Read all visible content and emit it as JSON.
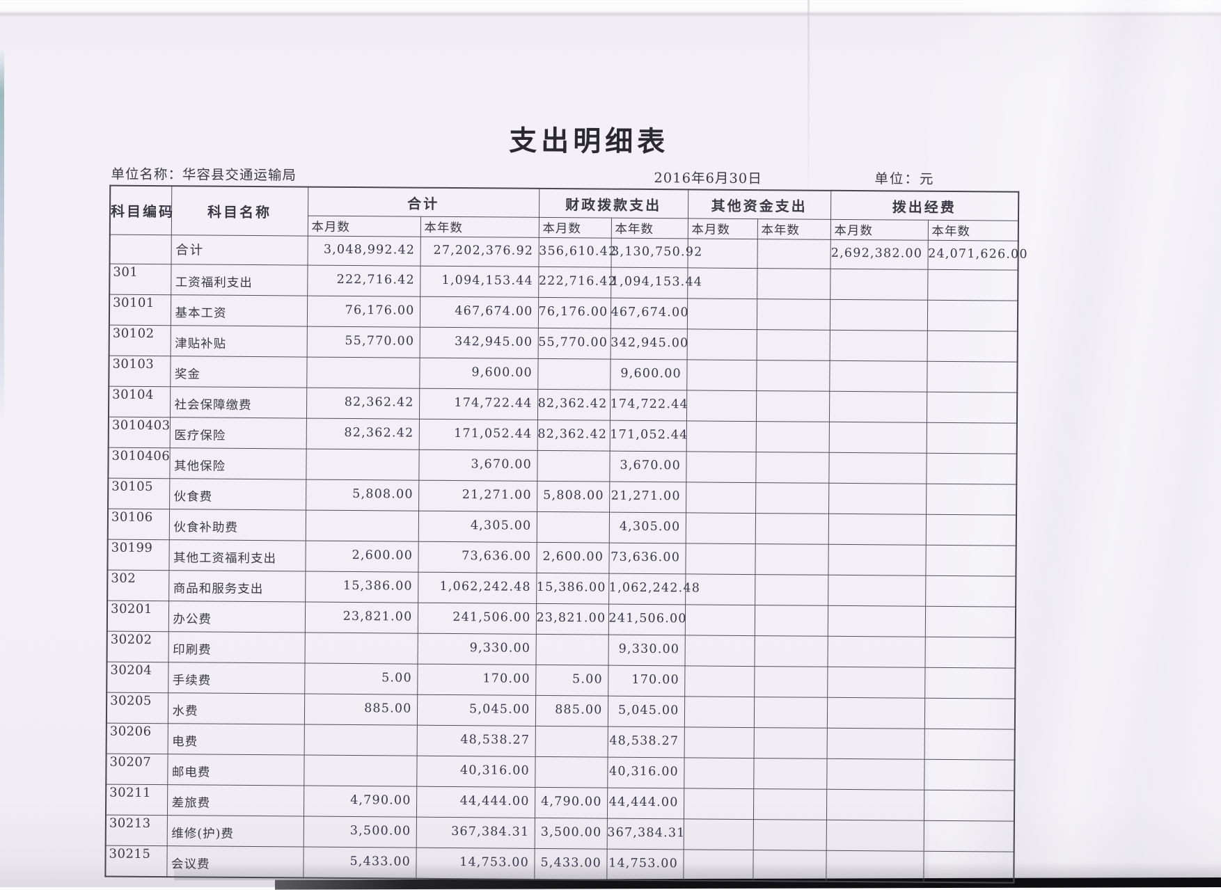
{
  "doc": {
    "title": "支出明细表",
    "unit_line": "单位名称：华容县交通运输局",
    "date": "2016年6月30日",
    "currency_line": "单位：元"
  },
  "table": {
    "corner_headers": [
      "科目编码",
      "科目名称"
    ],
    "groups": [
      "合计",
      "财政拨款支出",
      "其他资金支出",
      "拨出经费"
    ],
    "sub_headers": [
      "本月数",
      "本年数",
      "本月数",
      "本年数",
      "本月数",
      "本年数",
      "本月数",
      "本年数"
    ],
    "rows": [
      {
        "code": "",
        "name": "合计",
        "values": [
          "3,048,992.42",
          "27,202,376.92",
          "356,610.42",
          "3,130,750.92",
          "",
          "",
          "2,692,382.00",
          "24,071,626.00"
        ]
      },
      {
        "code": "301",
        "name": "工资福利支出",
        "values": [
          "222,716.42",
          "1,094,153.44",
          "222,716.42",
          "1,094,153.44",
          "",
          "",
          "",
          ""
        ]
      },
      {
        "code": "30101",
        "name": "基本工资",
        "values": [
          "76,176.00",
          "467,674.00",
          "76,176.00",
          "467,674.00",
          "",
          "",
          "",
          ""
        ]
      },
      {
        "code": "30102",
        "name": "津贴补贴",
        "values": [
          "55,770.00",
          "342,945.00",
          "55,770.00",
          "342,945.00",
          "",
          "",
          "",
          ""
        ]
      },
      {
        "code": "30103",
        "name": "奖金",
        "values": [
          "",
          "9,600.00",
          "",
          "9,600.00",
          "",
          "",
          "",
          ""
        ]
      },
      {
        "code": "30104",
        "name": "社会保障缴费",
        "values": [
          "82,362.42",
          "174,722.44",
          "82,362.42",
          "174,722.44",
          "",
          "",
          "",
          ""
        ]
      },
      {
        "code": "3010403",
        "name": "医疗保险",
        "values": [
          "82,362.42",
          "171,052.44",
          "82,362.42",
          "171,052.44",
          "",
          "",
          "",
          ""
        ]
      },
      {
        "code": "3010406",
        "name": "其他保险",
        "values": [
          "",
          "3,670.00",
          "",
          "3,670.00",
          "",
          "",
          "",
          ""
        ]
      },
      {
        "code": "30105",
        "name": "伙食费",
        "values": [
          "5,808.00",
          "21,271.00",
          "5,808.00",
          "21,271.00",
          "",
          "",
          "",
          ""
        ]
      },
      {
        "code": "30106",
        "name": "伙食补助费",
        "values": [
          "",
          "4,305.00",
          "",
          "4,305.00",
          "",
          "",
          "",
          ""
        ]
      },
      {
        "code": "30199",
        "name": "其他工资福利支出",
        "values": [
          "2,600.00",
          "73,636.00",
          "2,600.00",
          "73,636.00",
          "",
          "",
          "",
          ""
        ]
      },
      {
        "code": "302",
        "name": "商品和服务支出",
        "values": [
          "15,386.00",
          "1,062,242.48",
          "15,386.00",
          "1,062,242.48",
          "",
          "",
          "",
          ""
        ]
      },
      {
        "code": "30201",
        "name": "办公费",
        "values": [
          "23,821.00",
          "241,506.00",
          "23,821.00",
          "241,506.00",
          "",
          "",
          "",
          ""
        ]
      },
      {
        "code": "30202",
        "name": "印刷费",
        "values": [
          "",
          "9,330.00",
          "",
          "9,330.00",
          "",
          "",
          "",
          ""
        ]
      },
      {
        "code": "30204",
        "name": "手续费",
        "values": [
          "5.00",
          "170.00",
          "5.00",
          "170.00",
          "",
          "",
          "",
          ""
        ]
      },
      {
        "code": "30205",
        "name": "水费",
        "values": [
          "885.00",
          "5,045.00",
          "885.00",
          "5,045.00",
          "",
          "",
          "",
          ""
        ]
      },
      {
        "code": "30206",
        "name": "电费",
        "values": [
          "",
          "48,538.27",
          "",
          "48,538.27",
          "",
          "",
          "",
          ""
        ]
      },
      {
        "code": "30207",
        "name": "邮电费",
        "values": [
          "",
          "40,316.00",
          "",
          "40,316.00",
          "",
          "",
          "",
          ""
        ]
      },
      {
        "code": "30211",
        "name": "差旅费",
        "values": [
          "4,790.00",
          "44,444.00",
          "4,790.00",
          "44,444.00",
          "",
          "",
          "",
          ""
        ]
      },
      {
        "code": "30213",
        "name": "维修(护)费",
        "values": [
          "3,500.00",
          "367,384.31",
          "3,500.00",
          "367,384.31",
          "",
          "",
          "",
          ""
        ]
      },
      {
        "code": "30215",
        "name": "会议费",
        "values": [
          "5,433.00",
          "14,753.00",
          "5,433.00",
          "14,753.00",
          "",
          "",
          "",
          ""
        ]
      }
    ]
  },
  "colors": {
    "ink": "#3b3a44",
    "border": "#514f5b",
    "paper": "#f2f0f6",
    "scanner_edge_dark": "#0d0d10",
    "scanner_edge_teal": "#7da5aa"
  }
}
